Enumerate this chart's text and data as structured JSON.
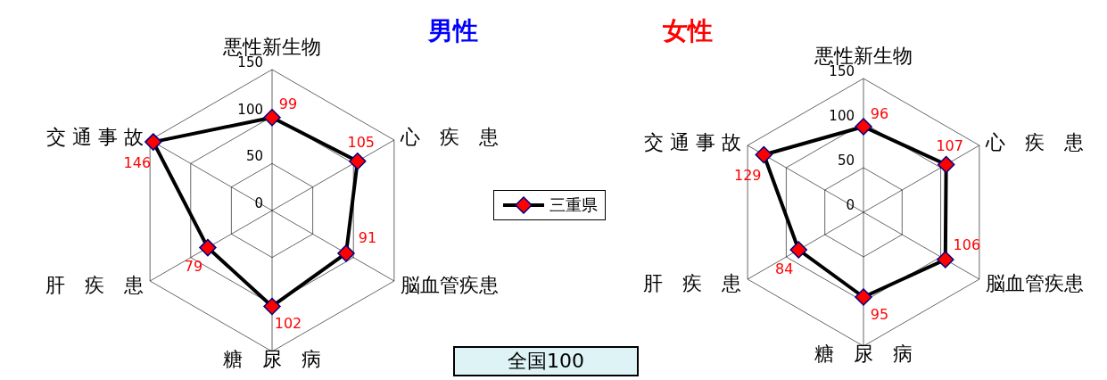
{
  "chart_data": [
    {
      "type": "radar",
      "title": "男性",
      "categories": [
        "悪性新生物",
        "心　疾　患",
        "脳血管疾患",
        "糖　尿　病",
        "肝　疾　患",
        "交 通 事 故"
      ],
      "series": [
        {
          "name": "三重県",
          "color": "#000000",
          "values": [
            99,
            105,
            91,
            102,
            79,
            146
          ]
        }
      ],
      "ylim": [
        0,
        150
      ],
      "yticks": [
        0,
        50,
        100,
        150
      ],
      "grid": true,
      "legend": "right",
      "marker": "diamond",
      "line_style": "solid",
      "data_labels": true,
      "annotations": [
        "全国100"
      ]
    },
    {
      "type": "radar",
      "title": "女性",
      "categories": [
        "悪性新生物",
        "心　疾　患",
        "脳血管疾患",
        "糖　尿　病",
        "肝　疾　患",
        "交 通 事 故"
      ],
      "series": [
        {
          "color": "#000000",
          "values": [
            96,
            107,
            106,
            95,
            84,
            129
          ]
        }
      ],
      "ylim": [
        0,
        150
      ],
      "yticks": [
        0,
        50,
        100,
        150
      ],
      "grid": true,
      "marker": "diamond",
      "line_style": "solid",
      "data_labels": true
    }
  ]
}
